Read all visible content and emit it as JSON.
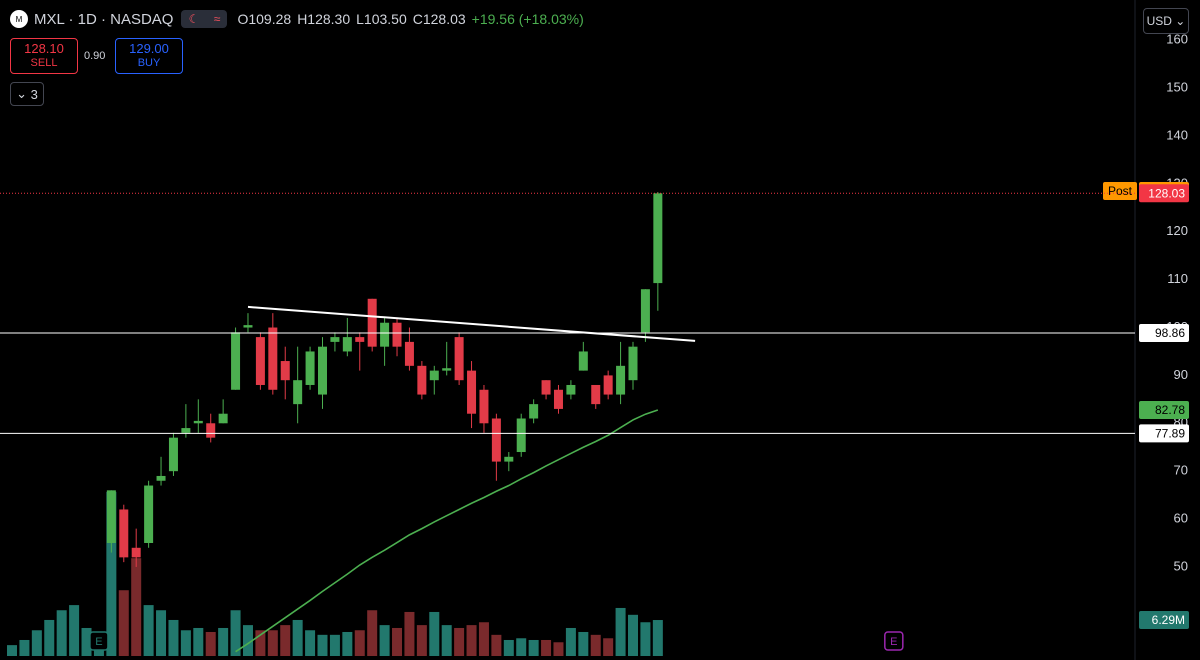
{
  "header": {
    "symbol": "MXL · 1D · NASDAQ",
    "open": "O109.28",
    "high": "H128.30",
    "low": "L103.50",
    "close": "C128.03",
    "change": "+19.56 (+18.03%)",
    "logo": "M"
  },
  "trade": {
    "sell_price": "128.10",
    "sell": "SELL",
    "spread": "0.90",
    "buy_price": "129.00",
    "buy": "BUY"
  },
  "collapse": "3",
  "currency": "USD",
  "events": [
    {
      "index": 7,
      "label": "E",
      "color": "#22786d"
    },
    {
      "index": 71,
      "label": "E",
      "color": "#9c27b0"
    }
  ],
  "chart_data": {
    "type": "candlestick",
    "ylim": [
      31.4,
      168.4
    ],
    "yticks": [
      50,
      60,
      70,
      80,
      90,
      100,
      110,
      120,
      130,
      140,
      150,
      160
    ],
    "up_color": "#4caf50",
    "down_color": "#e23b48",
    "open": [
      null,
      null,
      null,
      null,
      null,
      null,
      null,
      null,
      55,
      62,
      54,
      55,
      68,
      70,
      78,
      80,
      80,
      80,
      87,
      100,
      98,
      100,
      93,
      84,
      88,
      86,
      97,
      95,
      98,
      106,
      96,
      101,
      97,
      92,
      89,
      91,
      98,
      91,
      87,
      81,
      72,
      74,
      81,
      89,
      87,
      86,
      91,
      88,
      90,
      86,
      89,
      99,
      109.28
    ],
    "high": [
      null,
      null,
      null,
      null,
      null,
      null,
      null,
      null,
      66,
      63,
      58,
      68,
      73,
      78,
      84,
      85,
      82,
      85,
      100,
      103,
      99,
      103,
      96,
      96,
      96,
      98,
      99,
      102,
      99,
      106,
      102,
      102,
      100,
      93,
      92,
      97,
      99,
      93,
      88,
      82,
      74,
      82,
      85,
      89,
      88,
      89,
      97,
      88,
      91,
      97,
      97,
      108,
      128.3
    ],
    "low": [
      null,
      null,
      null,
      null,
      null,
      null,
      null,
      null,
      53,
      51,
      50,
      54,
      67,
      69,
      77,
      78,
      76,
      80,
      87,
      99,
      87,
      86,
      85,
      80,
      87,
      83,
      95,
      94,
      91,
      95,
      92,
      94,
      91,
      85,
      86,
      90,
      88,
      79,
      78,
      68,
      70,
      73,
      80,
      85,
      82,
      85,
      91,
      83,
      85,
      84,
      87,
      97,
      103.5
    ],
    "close": [
      null,
      null,
      null,
      null,
      null,
      null,
      null,
      null,
      66,
      52,
      52,
      67,
      69,
      77,
      79,
      80.5,
      77,
      82,
      99,
      100.5,
      88,
      87,
      89,
      89,
      95,
      96,
      98,
      98,
      97,
      96,
      101,
      96,
      92,
      86,
      91,
      91.5,
      89,
      82,
      80,
      72,
      73,
      81,
      84,
      86,
      83,
      88,
      95,
      84,
      86,
      92,
      96,
      108,
      128.03
    ],
    "series": [
      {
        "name": "Volume",
        "axis": "y2",
        "up_color": "#22786d",
        "down_color": "#7a2a2c",
        "last_label": "6.29M",
        "values": [
          1.9,
          2.8,
          4.5,
          6.3,
          8.0,
          8.9,
          4.9,
          2.8,
          28.7,
          11.5,
          17.1,
          8.9,
          8.0,
          6.3,
          4.5,
          4.9,
          4.2,
          4.9,
          8.0,
          5.4,
          4.5,
          4.5,
          5.4,
          6.3,
          4.5,
          3.7,
          3.7,
          4.2,
          4.5,
          8.0,
          5.4,
          4.9,
          7.7,
          5.4,
          7.7,
          5.4,
          4.9,
          5.4,
          5.9,
          3.7,
          2.8,
          3.1,
          2.8,
          2.8,
          2.4,
          4.9,
          4.2,
          3.7,
          3.1,
          8.4,
          7.2,
          5.9,
          6.29
        ]
      },
      {
        "name": "MA",
        "color": "#4caf50",
        "values": [
          null,
          null,
          null,
          null,
          null,
          null,
          null,
          null,
          null,
          null,
          null,
          null,
          null,
          null,
          null,
          null,
          null,
          null,
          32.3,
          34,
          35.8,
          37.6,
          39.4,
          41.2,
          43,
          44.9,
          46.7,
          48.5,
          50.4,
          52,
          53.5,
          55.1,
          56.7,
          58,
          59.4,
          60.7,
          62,
          63.3,
          64.5,
          65.8,
          67,
          68.4,
          69.7,
          71.1,
          72.4,
          73.7,
          75,
          76.2,
          77.5,
          79.1,
          80.7,
          81.9,
          82.78
        ]
      }
    ],
    "y2lim": [
      0,
      114.7
    ],
    "trendline": {
      "x": [
        19,
        55
      ],
      "values": [
        104.3,
        97.2
      ],
      "color": "#ffffff"
    },
    "axis_tags": [
      {
        "value": 128.52,
        "color": "#ff9800",
        "text_color": "#000000",
        "tag": "Post"
      },
      {
        "value": 128.03,
        "color": "#f23645",
        "text_color": "#ffffff",
        "hline": "dotted"
      },
      {
        "value": 98.86,
        "color": "#ffffff",
        "text_color": "#000000",
        "hline": "solid"
      },
      {
        "value": 82.78,
        "color": "#4caf50",
        "text_color": "#000000"
      },
      {
        "value": 77.89,
        "color": "#ffffff",
        "text_color": "#000000",
        "hline": "solid"
      }
    ]
  }
}
